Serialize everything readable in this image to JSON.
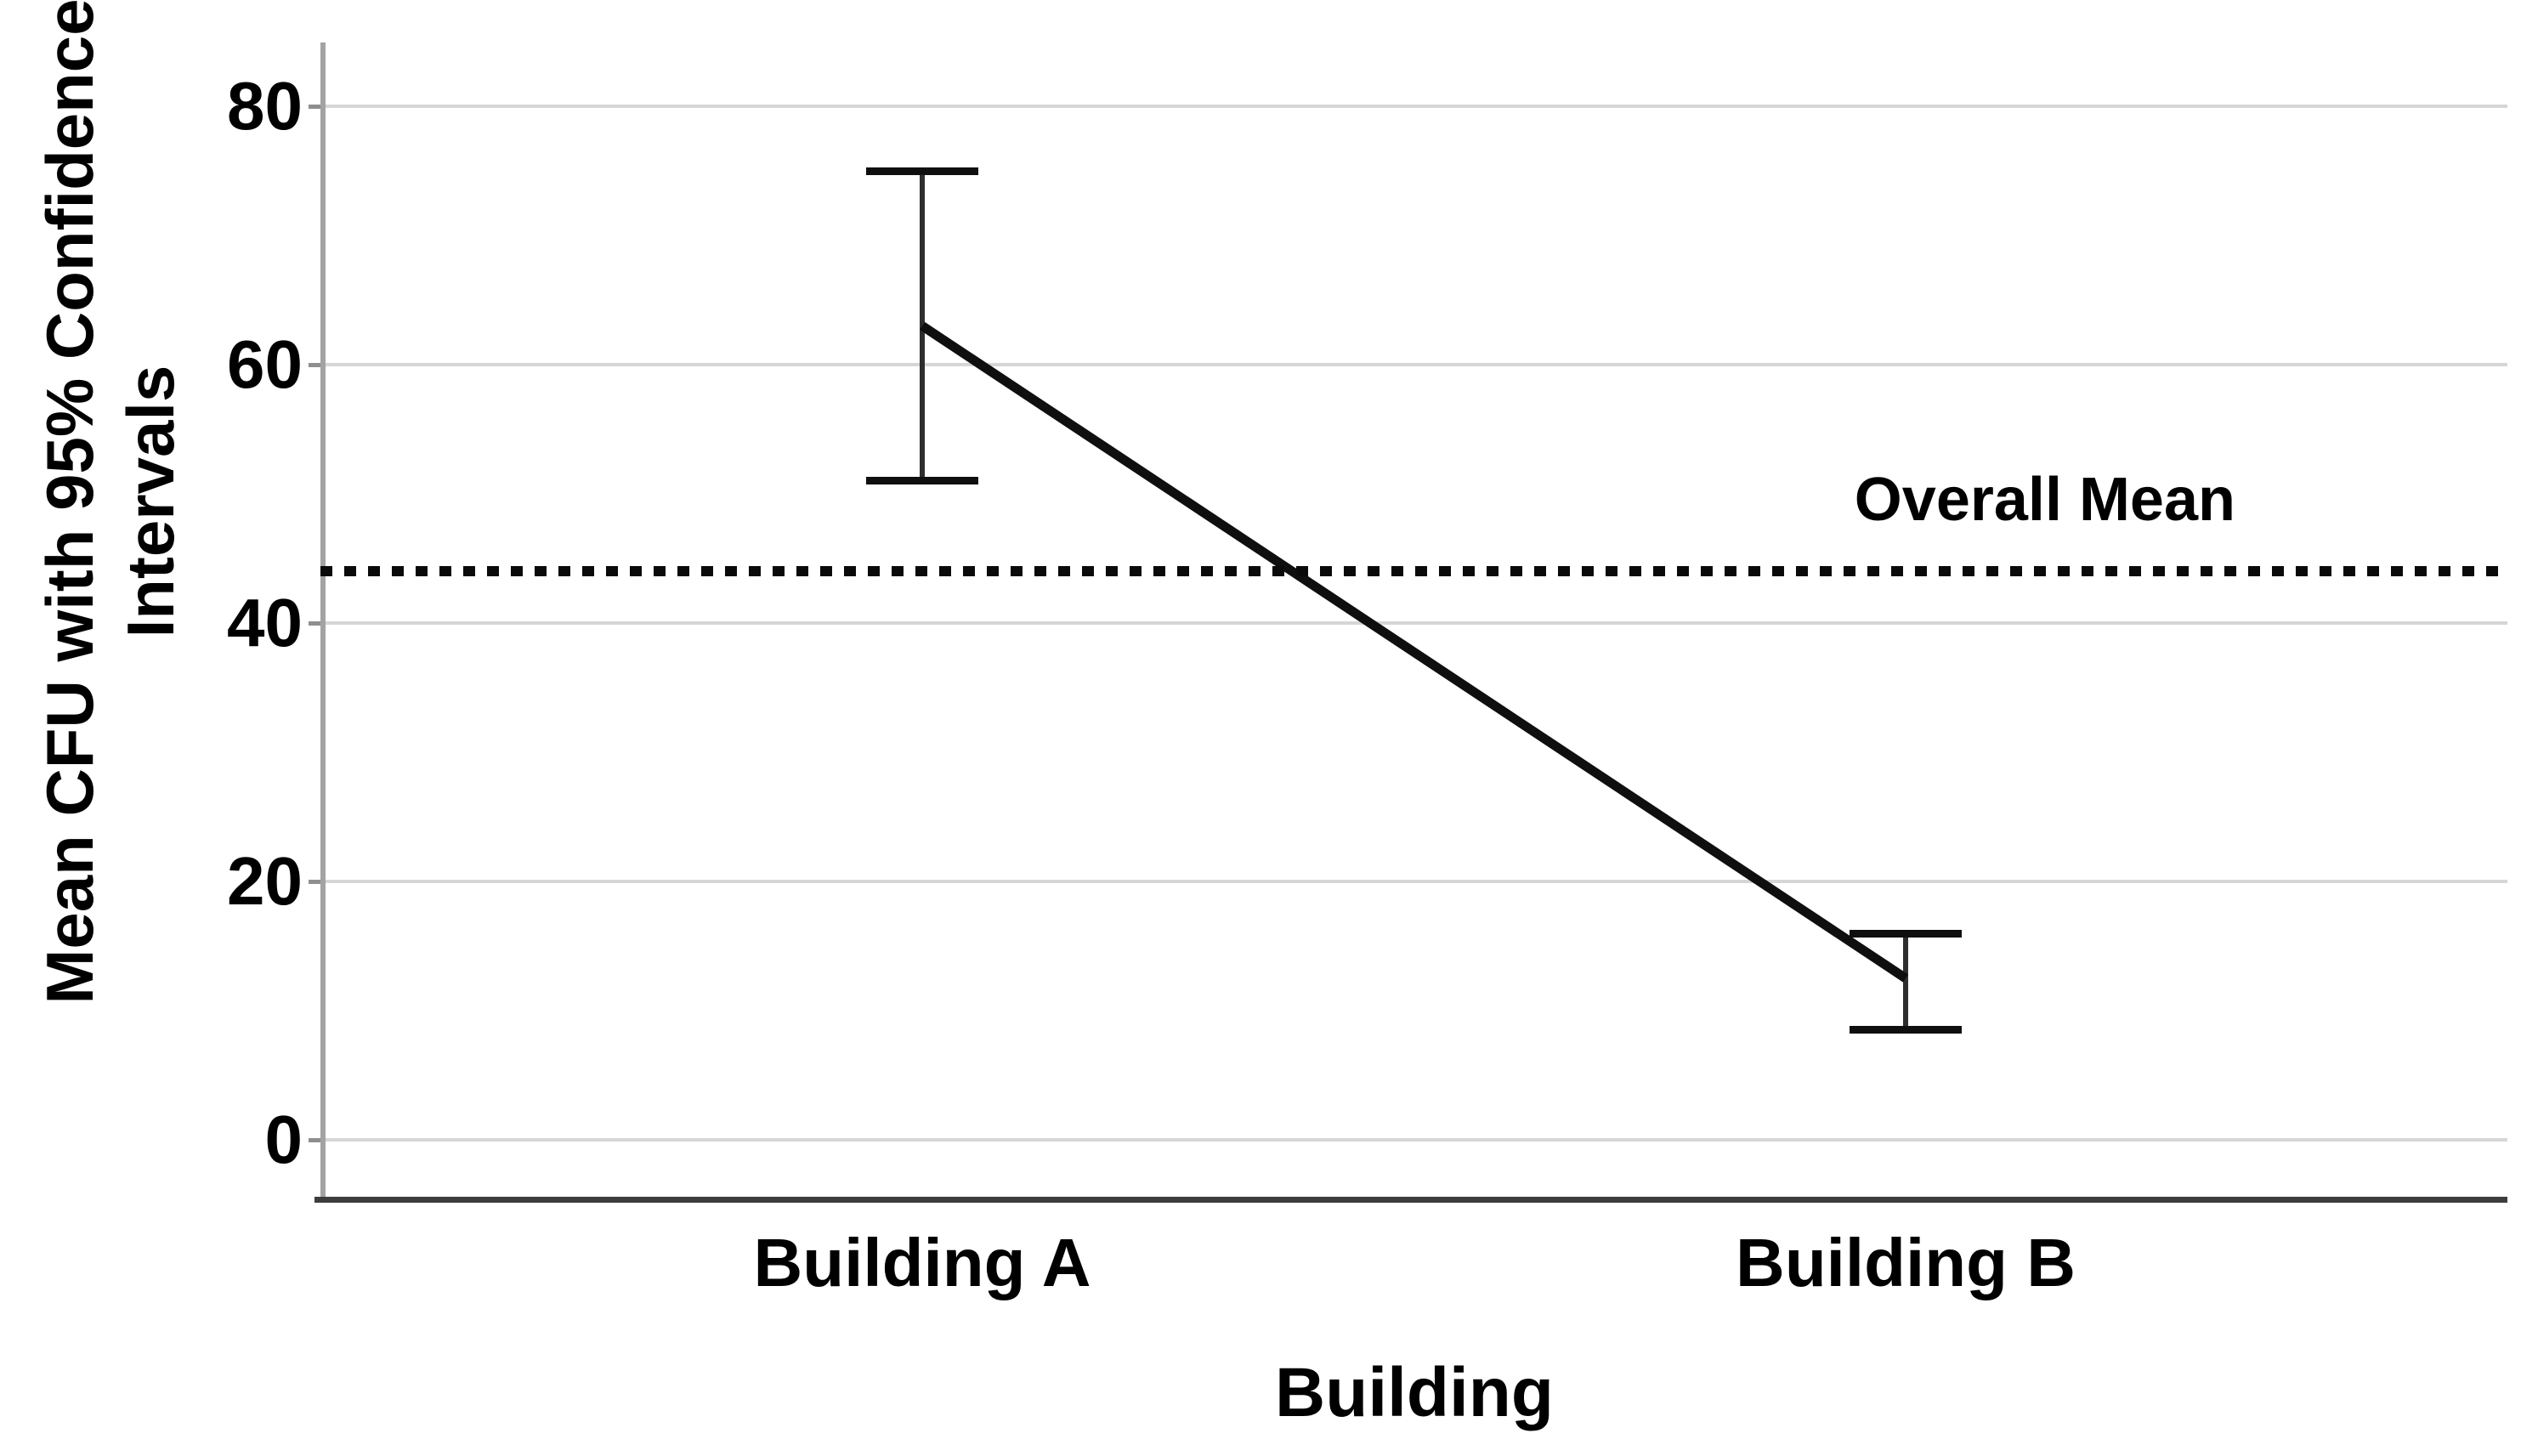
{
  "chart_data": {
    "type": "line",
    "title": "",
    "categories": [
      "Building A",
      "Building B"
    ],
    "series": [
      {
        "name": "Mean CFU",
        "means": [
          63,
          12.5
        ],
        "ci_upper": [
          75,
          16
        ],
        "ci_lower": [
          51,
          8.5
        ]
      }
    ],
    "overall_mean": {
      "label": "Overall Mean",
      "value": 44
    },
    "xlabel": "Building",
    "ylabel": "Mean CFU with 95% Confidence Intervals",
    "ylabel_lines": [
      "Mean CFU with 95% Confidence",
      "Intervals"
    ],
    "yticks": [
      0,
      20,
      40,
      60,
      80
    ],
    "ylim": [
      -5,
      85
    ],
    "grid": "horizontal-only",
    "legend": "none",
    "error_bar_type": "95% confidence interval",
    "colors": {
      "line": "#0f0f0f",
      "grid": "#d6d6d6",
      "y_axis": "#a3a3a3",
      "x_axis": "#3d3d3d",
      "text": "#000000",
      "background": "#ffffff"
    }
  }
}
